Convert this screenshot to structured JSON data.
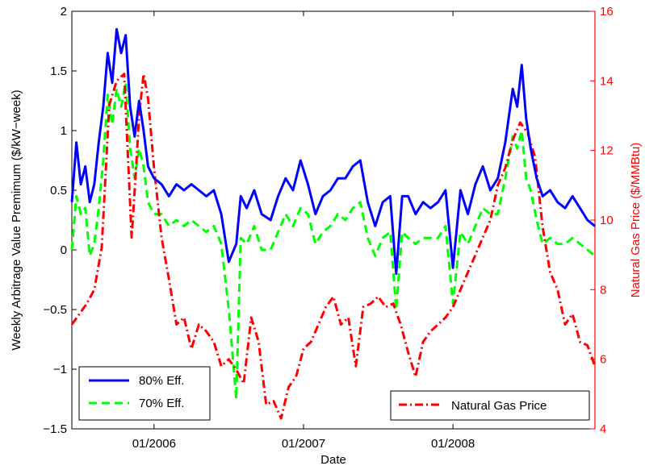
{
  "chart_data": {
    "type": "line",
    "xlabel": "Date",
    "ylabel_left": "Weekly Arbitrage Value Premimum ($/kW−week)",
    "ylabel_right": "Natural Gas Price ($/MMBtu)",
    "xticks": [
      {
        "label": "01/2006",
        "year": 2006.0
      },
      {
        "label": "01/2007",
        "year": 2007.0
      },
      {
        "label": "01/2008",
        "year": 2008.0
      }
    ],
    "xlim": [
      2005.45,
      2008.95
    ],
    "ylim_left": [
      -1.5,
      2
    ],
    "ylim_right": [
      4,
      16
    ],
    "yticks_left": [
      "−1.5",
      "−1",
      "−0.5",
      "0",
      "0.5",
      "1",
      "1.5",
      "2"
    ],
    "yticks_right": [
      "4",
      "6",
      "8",
      "10",
      "12",
      "14",
      "16"
    ],
    "colors": {
      "eff80": "#0000ff",
      "eff70": "#00ff00",
      "gas": "#ff0000",
      "right_axis": "#ff0000"
    },
    "legend_left": {
      "placement": "bottom-left",
      "entries": [
        {
          "label": "80% Eff.",
          "series": "eff80"
        },
        {
          "label": "70% Eff.",
          "series": "eff70"
        }
      ]
    },
    "legend_right": {
      "placement": "bottom-right",
      "entries": [
        {
          "label": "Natural Gas Price",
          "series": "gas"
        }
      ]
    },
    "series": [
      {
        "key": "eff80",
        "axis": "left",
        "style": "solid",
        "x": [
          2005.45,
          2005.48,
          2005.51,
          2005.54,
          2005.57,
          2005.6,
          2005.63,
          2005.66,
          2005.69,
          2005.72,
          2005.75,
          2005.78,
          2005.81,
          2005.84,
          2005.87,
          2005.9,
          2005.93,
          2005.96,
          2006.0,
          2006.05,
          2006.1,
          2006.15,
          2006.2,
          2006.25,
          2006.3,
          2006.35,
          2006.4,
          2006.45,
          2006.5,
          2006.55,
          2006.58,
          2006.62,
          2006.67,
          2006.72,
          2006.78,
          2006.83,
          2006.88,
          2006.93,
          2006.98,
          2007.03,
          2007.08,
          2007.13,
          2007.18,
          2007.23,
          2007.28,
          2007.33,
          2007.38,
          2007.43,
          2007.48,
          2007.53,
          2007.58,
          2007.62,
          2007.66,
          2007.7,
          2007.75,
          2007.8,
          2007.85,
          2007.9,
          2007.95,
          2008.0,
          2008.05,
          2008.1,
          2008.15,
          2008.2,
          2008.25,
          2008.3,
          2008.35,
          2008.4,
          2008.43,
          2008.46,
          2008.49,
          2008.52,
          2008.56,
          2008.6,
          2008.65,
          2008.7,
          2008.75,
          2008.8,
          2008.85,
          2008.9,
          2008.95
        ],
        "y": [
          0.4,
          0.9,
          0.55,
          0.7,
          0.4,
          0.55,
          0.9,
          1.2,
          1.65,
          1.4,
          1.85,
          1.65,
          1.8,
          1.2,
          0.95,
          1.25,
          1.0,
          0.7,
          0.6,
          0.55,
          0.45,
          0.55,
          0.5,
          0.55,
          0.5,
          0.45,
          0.5,
          0.3,
          -0.1,
          0.05,
          0.45,
          0.35,
          0.5,
          0.3,
          0.25,
          0.45,
          0.6,
          0.5,
          0.75,
          0.55,
          0.3,
          0.45,
          0.5,
          0.6,
          0.6,
          0.7,
          0.75,
          0.4,
          0.2,
          0.4,
          0.45,
          -0.2,
          0.45,
          0.45,
          0.3,
          0.4,
          0.35,
          0.4,
          0.5,
          -0.15,
          0.5,
          0.3,
          0.55,
          0.7,
          0.5,
          0.6,
          0.9,
          1.35,
          1.2,
          1.55,
          1.1,
          0.85,
          0.6,
          0.45,
          0.5,
          0.4,
          0.35,
          0.45,
          0.35,
          0.25,
          0.2
        ]
      },
      {
        "key": "eff70",
        "axis": "left",
        "style": "dashed",
        "x": [
          2005.45,
          2005.48,
          2005.51,
          2005.54,
          2005.57,
          2005.6,
          2005.63,
          2005.66,
          2005.69,
          2005.72,
          2005.75,
          2005.78,
          2005.81,
          2005.84,
          2005.87,
          2005.9,
          2005.93,
          2005.96,
          2006.0,
          2006.05,
          2006.1,
          2006.15,
          2006.2,
          2006.25,
          2006.3,
          2006.35,
          2006.4,
          2006.45,
          2006.5,
          2006.55,
          2006.58,
          2006.62,
          2006.67,
          2006.72,
          2006.78,
          2006.83,
          2006.88,
          2006.93,
          2006.98,
          2007.03,
          2007.08,
          2007.13,
          2007.18,
          2007.23,
          2007.28,
          2007.33,
          2007.38,
          2007.43,
          2007.48,
          2007.53,
          2007.58,
          2007.62,
          2007.66,
          2007.7,
          2007.75,
          2007.8,
          2007.85,
          2007.9,
          2007.95,
          2008.0,
          2008.05,
          2008.1,
          2008.15,
          2008.2,
          2008.25,
          2008.3,
          2008.35,
          2008.4,
          2008.43,
          2008.46,
          2008.49,
          2008.52,
          2008.56,
          2008.6,
          2008.65,
          2008.7,
          2008.75,
          2008.8,
          2008.85,
          2008.9,
          2008.95
        ],
        "y": [
          0.0,
          0.45,
          0.3,
          0.35,
          -0.05,
          0.05,
          0.35,
          0.75,
          1.3,
          1.05,
          1.35,
          1.2,
          1.4,
          0.85,
          0.6,
          0.85,
          0.7,
          0.4,
          0.3,
          0.3,
          0.2,
          0.25,
          0.2,
          0.25,
          0.2,
          0.15,
          0.2,
          0.05,
          -0.5,
          -1.25,
          0.1,
          0.05,
          0.2,
          0.0,
          0.0,
          0.15,
          0.3,
          0.2,
          0.35,
          0.3,
          0.05,
          0.15,
          0.2,
          0.3,
          0.25,
          0.35,
          0.4,
          0.1,
          -0.05,
          0.1,
          0.15,
          -0.5,
          0.15,
          0.1,
          0.05,
          0.1,
          0.1,
          0.1,
          0.2,
          -0.45,
          0.15,
          0.05,
          0.2,
          0.35,
          0.3,
          0.3,
          0.6,
          0.95,
          0.85,
          1.0,
          0.6,
          0.5,
          0.25,
          0.05,
          0.1,
          0.05,
          0.05,
          0.1,
          0.05,
          0.0,
          -0.05
        ]
      },
      {
        "key": "gas",
        "axis": "right",
        "style": "dashdot",
        "x": [
          2005.45,
          2005.5,
          2005.55,
          2005.6,
          2005.65,
          2005.7,
          2005.75,
          2005.8,
          2005.85,
          2005.88,
          2005.9,
          2005.93,
          2005.96,
          2006.0,
          2006.05,
          2006.1,
          2006.15,
          2006.2,
          2006.25,
          2006.3,
          2006.35,
          2006.4,
          2006.45,
          2006.5,
          2006.55,
          2006.6,
          2006.65,
          2006.7,
          2006.75,
          2006.8,
          2006.85,
          2006.9,
          2006.95,
          2007.0,
          2007.05,
          2007.1,
          2007.15,
          2007.2,
          2007.25,
          2007.3,
          2007.35,
          2007.4,
          2007.45,
          2007.5,
          2007.55,
          2007.6,
          2007.65,
          2007.7,
          2007.75,
          2007.8,
          2007.85,
          2007.9,
          2007.95,
          2008.0,
          2008.05,
          2008.1,
          2008.15,
          2008.2,
          2008.25,
          2008.3,
          2008.35,
          2008.4,
          2008.45,
          2008.5,
          2008.55,
          2008.6,
          2008.65,
          2008.7,
          2008.75,
          2008.8,
          2008.85,
          2008.9,
          2008.95
        ],
        "y": [
          7.0,
          7.3,
          7.6,
          8.0,
          9.2,
          13.3,
          14.0,
          14.2,
          9.5,
          11.5,
          13.0,
          14.2,
          13.5,
          11.5,
          9.5,
          8.3,
          7.0,
          7.2,
          6.3,
          7.0,
          6.8,
          6.5,
          5.8,
          6.0,
          5.7,
          5.3,
          7.2,
          6.5,
          4.7,
          4.8,
          4.3,
          5.2,
          5.5,
          6.3,
          6.5,
          7.0,
          7.5,
          7.8,
          7.0,
          7.2,
          5.8,
          7.5,
          7.6,
          7.8,
          7.5,
          7.6,
          7.0,
          6.2,
          5.5,
          6.5,
          6.8,
          7.0,
          7.2,
          7.5,
          8.0,
          8.5,
          9.0,
          9.5,
          10.0,
          11.0,
          11.5,
          12.3,
          12.8,
          12.5,
          11.8,
          9.8,
          8.5,
          8.0,
          7.0,
          7.3,
          6.5,
          6.4,
          5.8
        ]
      }
    ]
  }
}
